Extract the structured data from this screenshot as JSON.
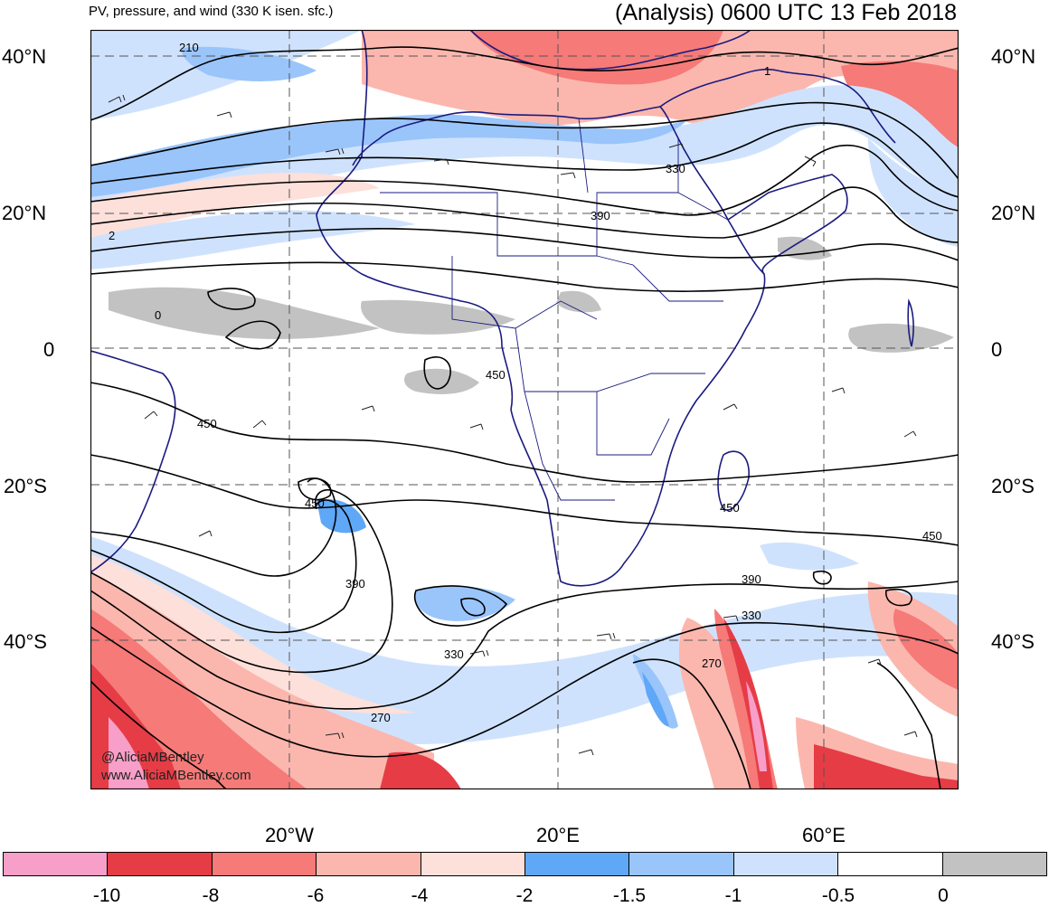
{
  "header": {
    "subtitle": "PV, pressure, and wind (330 K isen. sfc.)",
    "title": "(Analysis) 0600 UTC 13 Feb 2018"
  },
  "axes": {
    "lat_labels": [
      "40°N",
      "20°N",
      "0",
      "20°S",
      "40°S"
    ],
    "lon_labels": [
      "20°W",
      "20°E",
      "60°E"
    ]
  },
  "contour_labels": [
    "210",
    "1",
    "330",
    "390",
    "2",
    "0",
    "450",
    "450",
    "450",
    "450",
    "450",
    "390",
    "390",
    "330",
    "330",
    "270",
    "270"
  ],
  "credits": {
    "handle": "@AliciaMBentley",
    "website": "www.AliciaMBentley.com"
  },
  "colorbar": {
    "colors": [
      "#f79fc8",
      "#e63c46",
      "#f57a78",
      "#fbb7ae",
      "#fde0da",
      "#5fa7f7",
      "#9ac5fb",
      "#cfe2fd",
      "#ffffff",
      "#c2c2c2"
    ],
    "ticks": [
      "-10",
      "-8",
      "-6",
      "-4",
      "-2",
      "-1.5",
      "-1",
      "-0.5",
      "0"
    ]
  },
  "colors": {
    "coast": "#1a1a80",
    "contour": "#000000",
    "grid": "#555555"
  }
}
